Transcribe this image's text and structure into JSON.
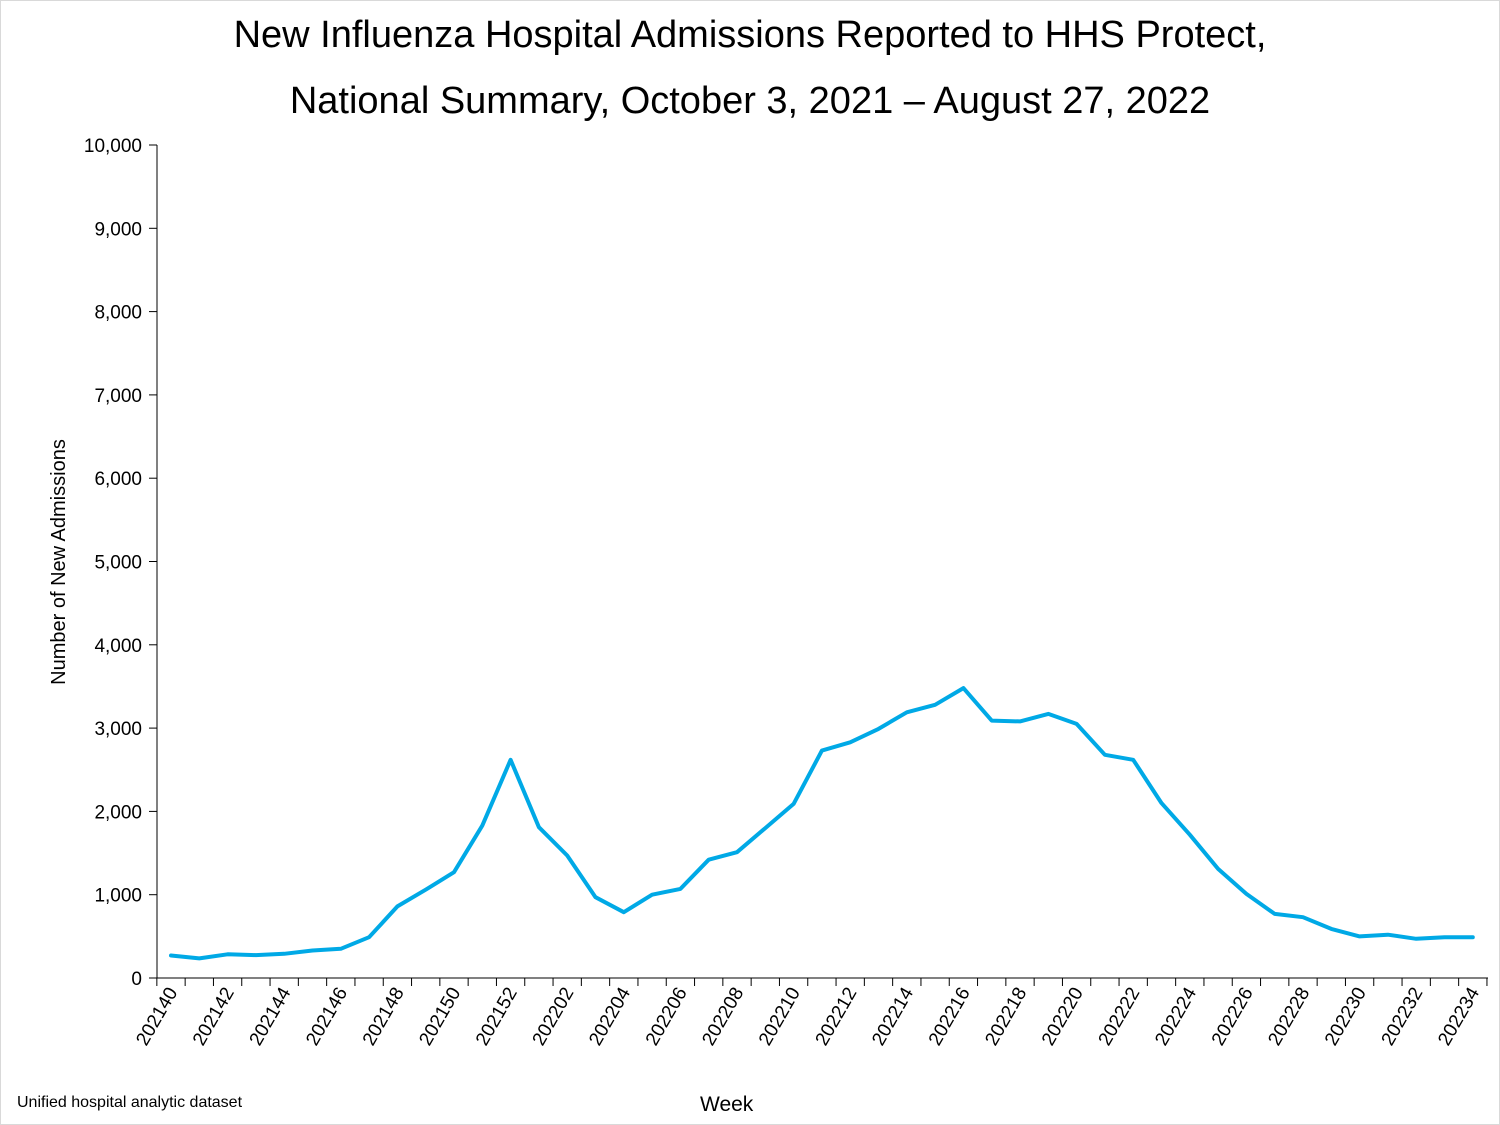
{
  "chart_data": {
    "type": "line",
    "title_line1": "New Influenza Hospital Admissions Reported to HHS Protect,",
    "title_line2": "National Summary, October 3, 2021 – August 27, 2022",
    "xlabel": "Week",
    "ylabel": "Number of New Admissions",
    "ylim": [
      0,
      10000
    ],
    "yticks": [
      "0",
      "1,000",
      "2,000",
      "3,000",
      "4,000",
      "5,000",
      "6,000",
      "7,000",
      "8,000",
      "9,000",
      "10,000"
    ],
    "weeks": [
      "202140",
      "202141",
      "202142",
      "202143",
      "202144",
      "202145",
      "202146",
      "202147",
      "202148",
      "202149",
      "202150",
      "202151",
      "202152",
      "202201",
      "202202",
      "202203",
      "202204",
      "202205",
      "202206",
      "202207",
      "202208",
      "202209",
      "202210",
      "202211",
      "202212",
      "202213",
      "202214",
      "202215",
      "202216",
      "202217",
      "202218",
      "202219",
      "202220",
      "202221",
      "202222",
      "202223",
      "202224",
      "202225",
      "202226",
      "202227",
      "202228",
      "202229",
      "202230",
      "202231",
      "202232",
      "202233",
      "202234"
    ],
    "xtick_labels": [
      "202140",
      "202142",
      "202144",
      "202146",
      "202148",
      "202150",
      "202152",
      "202202",
      "202204",
      "202206",
      "202208",
      "202210",
      "202212",
      "202214",
      "202216",
      "202218",
      "202220",
      "202222",
      "202224",
      "202226",
      "202228",
      "202230",
      "202232",
      "202234"
    ],
    "series": [
      {
        "color": "#00A9E6",
        "values": [
          270,
          235,
          285,
          275,
          290,
          330,
          350,
          490,
          860,
          1060,
          1270,
          1830,
          2620,
          1810,
          1470,
          970,
          790,
          1000,
          1070,
          1420,
          1510,
          1800,
          2090,
          2730,
          2830,
          2990,
          3190,
          3280,
          3480,
          3090,
          3080,
          3170,
          3050,
          2680,
          2620,
          2100,
          1720,
          1310,
          1010,
          770,
          730,
          590,
          500,
          520,
          470,
          490,
          490
        ]
      }
    ],
    "grid": false
  },
  "footer": {
    "source": "Unified hospital analytic dataset"
  }
}
